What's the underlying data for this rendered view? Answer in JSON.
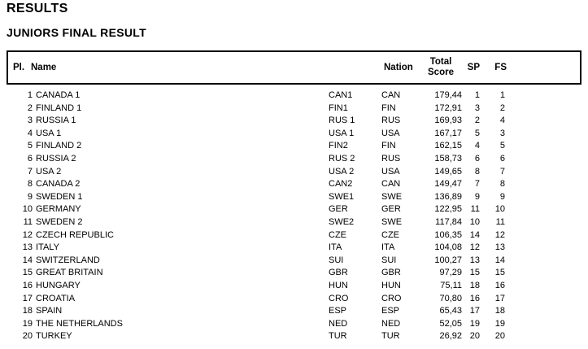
{
  "page": {
    "title": "RESULTS",
    "subtitle": "JUNIORS FINAL RESULT"
  },
  "colors": {
    "background": "#ffffff",
    "text": "#000000",
    "table_border": "#000000"
  },
  "table": {
    "headers": {
      "place": "Pl.",
      "name": "Name",
      "nation": "Nation",
      "total_score_line1": "Total",
      "total_score_line2": "Score",
      "sp": "SP",
      "fs": "FS"
    },
    "rows": [
      {
        "place": "1",
        "name": "CANADA 1",
        "code": "CAN1",
        "nation": "CAN",
        "total_score": "179,44",
        "sp": "1",
        "fs": "1"
      },
      {
        "place": "2",
        "name": "FINLAND 1",
        "code": "FIN1",
        "nation": "FIN",
        "total_score": "172,91",
        "sp": "3",
        "fs": "2"
      },
      {
        "place": "3",
        "name": "RUSSIA 1",
        "code": "RUS 1",
        "nation": "RUS",
        "total_score": "169,93",
        "sp": "2",
        "fs": "4"
      },
      {
        "place": "4",
        "name": "USA 1",
        "code": "USA 1",
        "nation": "USA",
        "total_score": "167,17",
        "sp": "5",
        "fs": "3"
      },
      {
        "place": "5",
        "name": "FINLAND 2",
        "code": "FIN2",
        "nation": "FIN",
        "total_score": "162,15",
        "sp": "4",
        "fs": "5"
      },
      {
        "place": "6",
        "name": "RUSSIA 2",
        "code": "RUS 2",
        "nation": "RUS",
        "total_score": "158,73",
        "sp": "6",
        "fs": "6"
      },
      {
        "place": "7",
        "name": "USA 2",
        "code": "USA 2",
        "nation": "USA",
        "total_score": "149,65",
        "sp": "8",
        "fs": "7"
      },
      {
        "place": "8",
        "name": "CANADA 2",
        "code": "CAN2",
        "nation": "CAN",
        "total_score": "149,47",
        "sp": "7",
        "fs": "8"
      },
      {
        "place": "9",
        "name": "SWEDEN 1",
        "code": "SWE1",
        "nation": "SWE",
        "total_score": "136,89",
        "sp": "9",
        "fs": "9"
      },
      {
        "place": "10",
        "name": "GERMANY",
        "code": "GER",
        "nation": "GER",
        "total_score": "122,95",
        "sp": "11",
        "fs": "10"
      },
      {
        "place": "11",
        "name": "SWEDEN 2",
        "code": "SWE2",
        "nation": "SWE",
        "total_score": "117,84",
        "sp": "10",
        "fs": "11"
      },
      {
        "place": "12",
        "name": "CZECH REPUBLIC",
        "code": "CZE",
        "nation": "CZE",
        "total_score": "106,35",
        "sp": "14",
        "fs": "12"
      },
      {
        "place": "13",
        "name": "ITALY",
        "code": "ITA",
        "nation": "ITA",
        "total_score": "104,08",
        "sp": "12",
        "fs": "13"
      },
      {
        "place": "14",
        "name": "SWITZERLAND",
        "code": "SUI",
        "nation": "SUI",
        "total_score": "100,27",
        "sp": "13",
        "fs": "14"
      },
      {
        "place": "15",
        "name": "GREAT BRITAIN",
        "code": "GBR",
        "nation": "GBR",
        "total_score": "97,29",
        "sp": "15",
        "fs": "15"
      },
      {
        "place": "16",
        "name": "HUNGARY",
        "code": "HUN",
        "nation": "HUN",
        "total_score": "75,11",
        "sp": "18",
        "fs": "16"
      },
      {
        "place": "17",
        "name": "CROATIA",
        "code": "CRO",
        "nation": "CRO",
        "total_score": "70,80",
        "sp": "16",
        "fs": "17"
      },
      {
        "place": "18",
        "name": "SPAIN",
        "code": "ESP",
        "nation": "ESP",
        "total_score": "65,43",
        "sp": "17",
        "fs": "18"
      },
      {
        "place": "19",
        "name": "THE NETHERLANDS",
        "code": "NED",
        "nation": "NED",
        "total_score": "52,05",
        "sp": "19",
        "fs": "19"
      },
      {
        "place": "20",
        "name": "TURKEY",
        "code": "TUR",
        "nation": "TUR",
        "total_score": "26,92",
        "sp": "20",
        "fs": "20"
      }
    ]
  }
}
